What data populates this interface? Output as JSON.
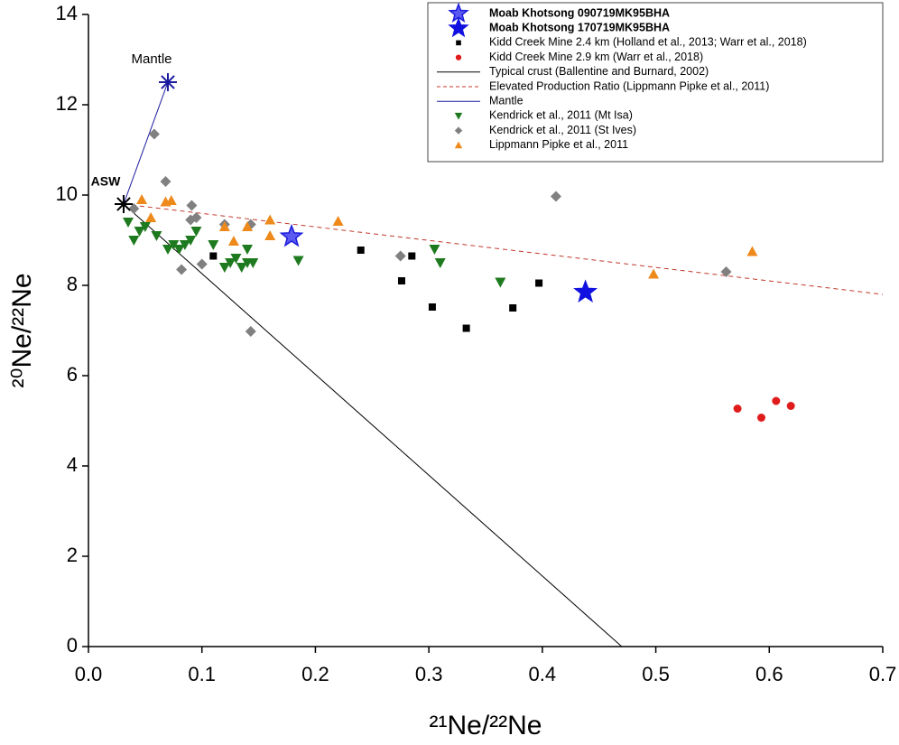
{
  "chart_data": {
    "type": "scatter",
    "x_label": "²¹Ne/²²Ne",
    "y_label": "²⁰Ne/²²Ne",
    "xlim": [
      0,
      0.7
    ],
    "ylim": [
      0,
      14
    ],
    "xticks": [
      {
        "value": 0,
        "label": "0.0"
      },
      0.1,
      0.2,
      0.3,
      0.4,
      0.5,
      0.6,
      0.7
    ],
    "yticks": [
      0,
      2,
      4,
      6,
      8,
      10,
      12,
      14
    ],
    "grid": false,
    "legend_position": "upper right",
    "series": [
      {
        "name": "Moab Khotsong 090719MK95BHA",
        "marker": "star-open",
        "color": "#1a1adb",
        "x": [
          0.179
        ],
        "y": [
          9.08
        ]
      },
      {
        "name": "Moab Khotsong 170719MK95BHA",
        "marker": "star",
        "color": "#1010e0",
        "x": [
          0.438
        ],
        "y": [
          7.85
        ]
      },
      {
        "name": "Kidd Creek Mine 2.4 km (Holland et al., 2013; Warr et al., 2018)",
        "marker": "square",
        "color": "#000000",
        "x": [
          0.11,
          0.24,
          0.276,
          0.285,
          0.303,
          0.333,
          0.374,
          0.397
        ],
        "y": [
          8.65,
          8.78,
          8.1,
          8.65,
          7.52,
          7.05,
          7.5,
          8.05
        ]
      },
      {
        "name": "Kidd Creek Mine 2.9 km (Warr et al., 2018)",
        "marker": "circle",
        "color": "#e01b1b",
        "x": [
          0.572,
          0.593,
          0.606,
          0.619
        ],
        "y": [
          5.27,
          5.07,
          5.44,
          5.33
        ]
      },
      {
        "name": "Typical crust (Ballentine and Burnard, 2002)",
        "marker": "line",
        "color": "#000000",
        "x": [
          0.031,
          0.47
        ],
        "y": [
          9.8,
          0
        ]
      },
      {
        "name": "Elevated Production Ratio (Lippmann Pipke et al., 2011)",
        "marker": "dashed",
        "color": "#c0392b",
        "x": [
          0.031,
          0.7
        ],
        "y": [
          9.8,
          7.8
        ]
      },
      {
        "name": "Mantle",
        "marker": "line",
        "color": "#1a1a9e",
        "x": [
          0.031,
          0.07
        ],
        "y": [
          9.8,
          12.5
        ]
      },
      {
        "name": "Kendrick et al., 2011 (Mt Isa)",
        "marker": "triangle-down",
        "color": "#1e7a1e",
        "x": [
          0.035,
          0.04,
          0.045,
          0.05,
          0.06,
          0.07,
          0.075,
          0.08,
          0.085,
          0.09,
          0.095,
          0.11,
          0.12,
          0.125,
          0.13,
          0.135,
          0.14,
          0.145,
          0.14,
          0.185,
          0.305,
          0.31,
          0.363
        ],
        "y": [
          9.4,
          9.0,
          9.2,
          9.3,
          9.1,
          8.8,
          8.9,
          8.8,
          8.9,
          9.0,
          9.2,
          8.9,
          8.4,
          8.5,
          8.6,
          8.4,
          8.5,
          8.5,
          8.8,
          8.55,
          8.8,
          8.5,
          8.07
        ]
      },
      {
        "name": "Kendrick et al., 2011 (St Ives)",
        "marker": "diamond",
        "color": "#808080",
        "x": [
          0.04,
          0.058,
          0.068,
          0.082,
          0.09,
          0.091,
          0.095,
          0.1,
          0.12,
          0.143,
          0.143,
          0.275,
          0.412,
          0.562
        ],
        "y": [
          9.7,
          11.35,
          10.3,
          8.35,
          9.45,
          9.77,
          9.5,
          8.47,
          9.35,
          9.35,
          6.98,
          8.65,
          9.97,
          8.3
        ]
      },
      {
        "name": "Lippmann Pipke et al., 2011",
        "marker": "triangle-up",
        "color": "#ee8a1c",
        "x": [
          0.047,
          0.055,
          0.068,
          0.073,
          0.12,
          0.128,
          0.14,
          0.16,
          0.16,
          0.22,
          0.498,
          0.585
        ],
        "y": [
          9.9,
          9.5,
          9.85,
          9.88,
          9.3,
          8.98,
          9.3,
          9.45,
          9.1,
          9.42,
          8.25,
          8.75
        ]
      }
    ],
    "annotations": [
      {
        "text": "ASW",
        "x": 0.031,
        "y": 9.8,
        "color": "#000000"
      },
      {
        "text": "Mantle",
        "x": 0.07,
        "y": 12.5,
        "color": "#1a1a9e"
      }
    ]
  }
}
